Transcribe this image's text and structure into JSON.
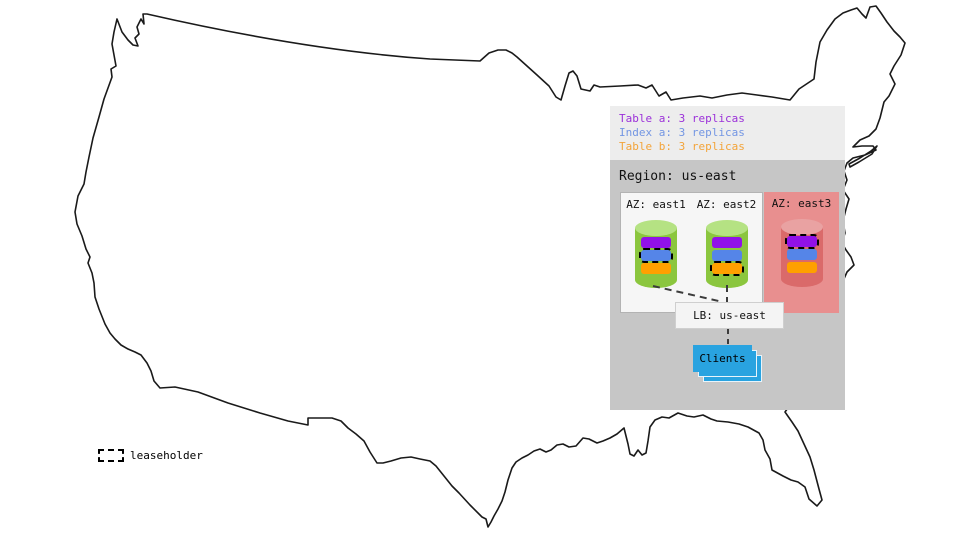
{
  "map": {
    "stroke": "#1a1a1a"
  },
  "legend_panel": {
    "bg": "#ededed",
    "items": [
      {
        "label": "Table a: 3 replicas",
        "color": "#9b30d9"
      },
      {
        "label": "Index a: 3 replicas",
        "color": "#7396e3"
      },
      {
        "label": "Table b: 3 replicas",
        "color": "#f3a43a"
      }
    ]
  },
  "region": {
    "bg": "#c6c6c6",
    "title": "Region: us-east",
    "connector_color": "#3c3c3c",
    "azs": [
      {
        "label": "AZ: east1",
        "bg": "#f6f6f6",
        "cylinder": {
          "body": "#8bc63e",
          "top": "#b5e283"
        },
        "replicas": [
          {
            "name": "table-a",
            "color": "#9111e8",
            "leaseholder": false
          },
          {
            "name": "index-a",
            "color": "#5585e8",
            "leaseholder": true
          },
          {
            "name": "table-b",
            "color": "#ffa000",
            "leaseholder": false
          }
        ]
      },
      {
        "label": "AZ: east2",
        "bg": "#f6f6f6",
        "cylinder": {
          "body": "#8bc63e",
          "top": "#b5e283"
        },
        "replicas": [
          {
            "name": "table-a",
            "color": "#9111e8",
            "leaseholder": false
          },
          {
            "name": "index-a",
            "color": "#5585e8",
            "leaseholder": false
          },
          {
            "name": "table-b",
            "color": "#ffa000",
            "leaseholder": true
          }
        ]
      },
      {
        "label": "AZ: east3",
        "bg": "#e88f8f",
        "cylinder": {
          "body": "#da6a6a",
          "top": "#e9a2a2"
        },
        "replicas": [
          {
            "name": "table-a",
            "color": "#9111e8",
            "leaseholder": true
          },
          {
            "name": "index-a",
            "color": "#5585e8",
            "leaseholder": false
          },
          {
            "name": "table-b",
            "color": "#ffa000",
            "leaseholder": false
          }
        ]
      }
    ],
    "lb": {
      "label": "LB: us-east",
      "bg": "#f4f4f4"
    },
    "clients": {
      "label": "Clients",
      "bg": "#29a3e0"
    }
  },
  "key": {
    "label": "leaseholder"
  }
}
